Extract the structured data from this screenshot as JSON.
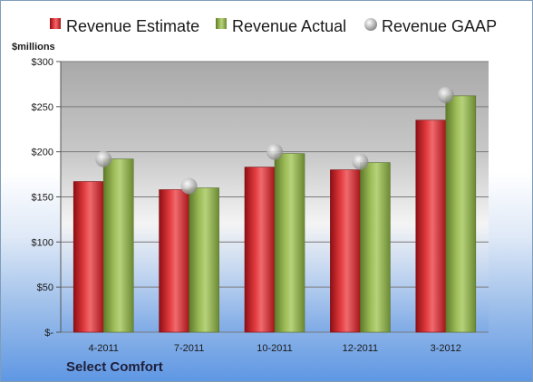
{
  "footer": {
    "company": "Select Comfort"
  },
  "chart_data": {
    "type": "bar",
    "ylabel": "$millions",
    "ylim": [
      0,
      300
    ],
    "yticks": [
      0,
      50,
      100,
      150,
      200,
      250,
      300
    ],
    "ytick_labels": [
      "$-",
      "$50",
      "$100",
      "$150",
      "$200",
      "$250",
      "$300"
    ],
    "categories": [
      "4-2011",
      "7-2011",
      "10-2011",
      "12-2011",
      "3-2012"
    ],
    "series": [
      {
        "name": "Revenue Estimate",
        "kind": "bar",
        "color": "#d7262d",
        "values": [
          167,
          158,
          183,
          180,
          235
        ]
      },
      {
        "name": "Revenue Actual",
        "kind": "bar",
        "color": "#8fb04a",
        "values": [
          192,
          160,
          198,
          188,
          262
        ]
      },
      {
        "name": "Revenue GAAP",
        "kind": "marker",
        "color": "#b8b8b8",
        "values": [
          192,
          162,
          200,
          189,
          263
        ]
      }
    ],
    "legend": "top",
    "grid": true
  }
}
